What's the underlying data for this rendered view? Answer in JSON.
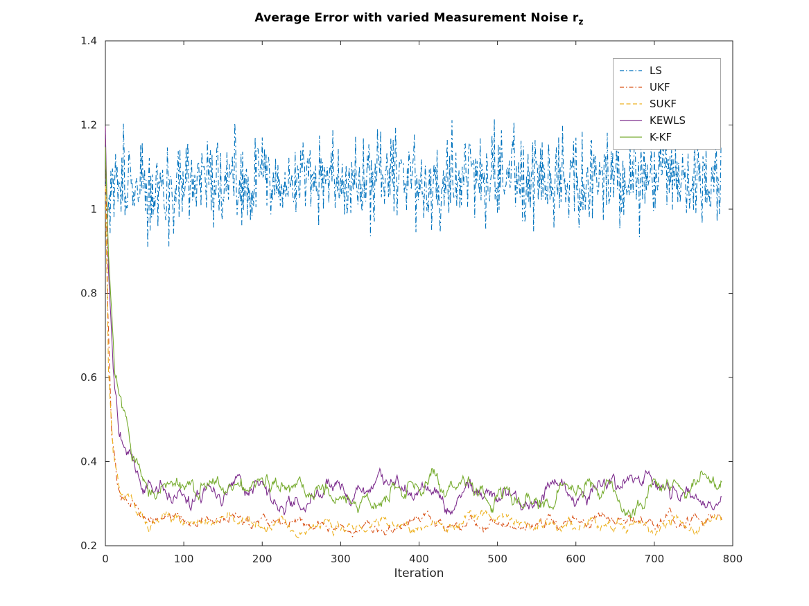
{
  "figure": {
    "background": "#ffffff",
    "axis_color": "#262626",
    "legend_border_color": "#a6a6a6"
  },
  "chart_data": {
    "type": "line",
    "title": "Average Error with varied Measurement Noise r_z",
    "title_display": {
      "main": "Average Error with varied Measurement Noise r",
      "sub": "z"
    },
    "xlabel": "Iteration",
    "ylabel": "",
    "xlim": [
      0,
      800
    ],
    "ylim": [
      0.2,
      1.4
    ],
    "xticks": [
      0,
      100,
      200,
      300,
      400,
      500,
      600,
      700,
      800
    ],
    "yticks": [
      0.2,
      0.4,
      0.6,
      0.8,
      1,
      1.2,
      1.4
    ],
    "grid": false,
    "x_step": 1,
    "x_end": 786,
    "legend": {
      "position": "top-right",
      "entries": [
        "LS",
        "UKF",
        "SUKF",
        "KEWLS",
        "K-KF"
      ]
    },
    "series": [
      {
        "name": "LS",
        "color": "#0072BD",
        "line_style": "dash-dot",
        "noise_type": "white",
        "noise_std": 0.055,
        "seed": 101,
        "keypoints": [
          [
            0,
            1.06
          ],
          [
            786,
            1.08
          ]
        ],
        "approx_mean": 1.08,
        "approx_range": [
          0.88,
          1.26
        ]
      },
      {
        "name": "UKF",
        "color": "#D95319",
        "line_style": "dash-dot",
        "noise_type": "smooth",
        "noise_std": 0.013,
        "seed": 202,
        "keypoints": [
          [
            0,
            1.2
          ],
          [
            3,
            0.78
          ],
          [
            8,
            0.46
          ],
          [
            15,
            0.33
          ],
          [
            30,
            0.285
          ],
          [
            60,
            0.265
          ],
          [
            400,
            0.26
          ],
          [
            786,
            0.255
          ]
        ]
      },
      {
        "name": "SUKF",
        "color": "#EDB120",
        "line_style": "dashed",
        "noise_type": "smooth",
        "noise_std": 0.013,
        "seed": 303,
        "keypoints": [
          [
            0,
            1.05
          ],
          [
            4,
            0.62
          ],
          [
            10,
            0.4
          ],
          [
            20,
            0.31
          ],
          [
            40,
            0.27
          ],
          [
            70,
            0.255
          ],
          [
            786,
            0.25
          ]
        ]
      },
      {
        "name": "KEWLS",
        "color": "#7E2F8E",
        "line_style": "solid",
        "noise_type": "smooth",
        "noise_std": 0.02,
        "seed": 404,
        "keypoints": [
          [
            0,
            1.2
          ],
          [
            4,
            0.85
          ],
          [
            10,
            0.6
          ],
          [
            18,
            0.47
          ],
          [
            30,
            0.38
          ],
          [
            50,
            0.315
          ],
          [
            100,
            0.32
          ],
          [
            786,
            0.315
          ]
        ]
      },
      {
        "name": "K-KF",
        "color": "#77AC30",
        "line_style": "solid",
        "noise_type": "smooth",
        "noise_std": 0.02,
        "seed": 505,
        "keypoints": [
          [
            0,
            1.15
          ],
          [
            4,
            0.9
          ],
          [
            12,
            0.62
          ],
          [
            22,
            0.5
          ],
          [
            35,
            0.42
          ],
          [
            55,
            0.335
          ],
          [
            110,
            0.325
          ],
          [
            786,
            0.32
          ]
        ]
      }
    ]
  }
}
